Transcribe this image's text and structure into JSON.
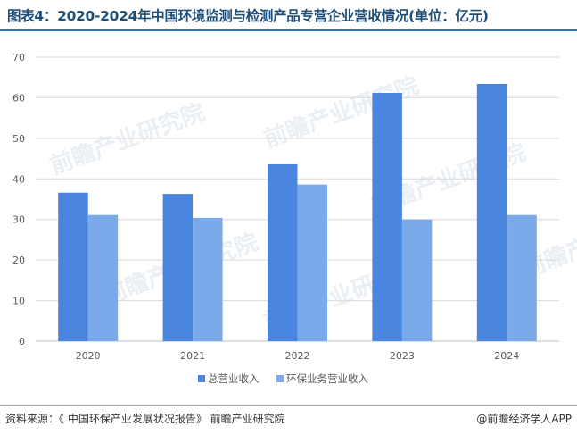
{
  "title": "图表4：2020-2024年中国环境监测与检测产品专营企业营收情况(单位：亿元)",
  "footer": {
    "source": "资料来源：《 中国环保产业发展状况报告》 前瞻产业研究院",
    "credit": "@前瞻经济学人APP"
  },
  "watermark": "前瞻产业研究院",
  "colors": {
    "series1": "#4a86e0",
    "series2": "#7aaaea",
    "grid": "#d9d9d9",
    "axis_text": "#595959"
  },
  "chart_data": {
    "type": "bar",
    "title": "图表4：2020-2024年中国环境监测与检测产品专营企业营收情况(单位：亿元)",
    "categories": [
      "2020",
      "2021",
      "2022",
      "2023",
      "2024"
    ],
    "series": [
      {
        "name": "总营业收入",
        "values": [
          36.6,
          36.3,
          43.6,
          61.2,
          63.4
        ]
      },
      {
        "name": "环保业务营业收入",
        "values": [
          31.1,
          30.4,
          38.6,
          30.0,
          31.1
        ]
      }
    ],
    "ylim": [
      0,
      70
    ],
    "yticks": [
      0,
      10,
      20,
      30,
      40,
      50,
      60,
      70
    ],
    "grid": true,
    "legend": "bottom"
  }
}
